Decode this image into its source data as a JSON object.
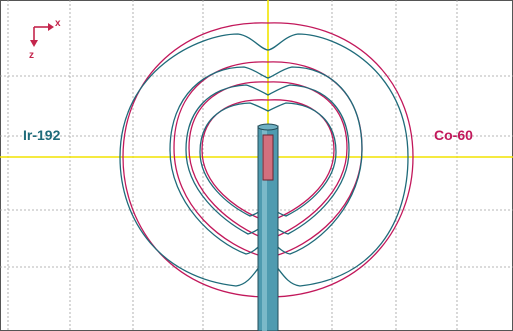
{
  "axes": {
    "x_label": "x",
    "z_label": "z",
    "color": "#c4254c"
  },
  "labels": {
    "left_source": "Ir-192",
    "right_source": "Co-60"
  },
  "colors": {
    "ir192": "#1f6b7a",
    "co60": "#c2185b",
    "crosshair": "#f2e400",
    "grid": "#9a9a9a",
    "source_rod": "#4f9bb0",
    "source_core": "#d2707e"
  }
}
